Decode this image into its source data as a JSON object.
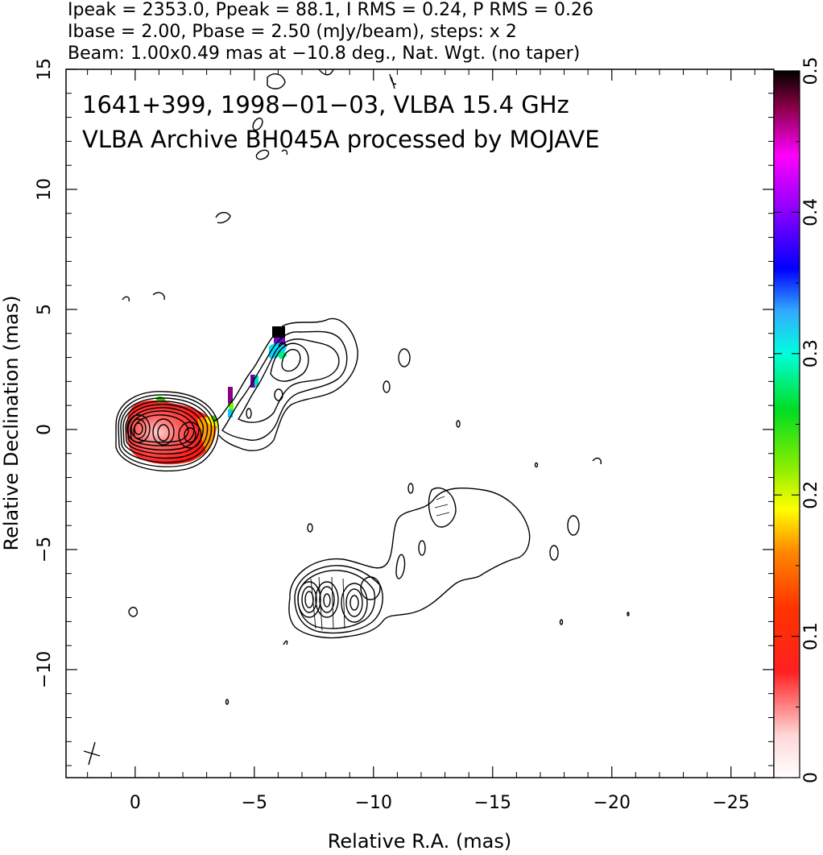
{
  "header": {
    "line1": "Ipeak = 2353.0, Ppeak = 88.1, I RMS = 0.24, P RMS = 0.26",
    "line2": "Ibase = 2.00, Pbase = 2.50 (mJy/beam), steps: x 2",
    "line3": "Beam: 1.00x0.49 mas at −10.8 deg., Nat. Wgt. (no taper)"
  },
  "overlay": {
    "line1": "1641+399, 1998−01−03, VLBA 15.4 GHz",
    "line2": "VLBA Archive BH045A processed by MOJAVE"
  },
  "chart_data": {
    "type": "heatmap",
    "description_kind": "VLBI total-intensity contour map with fractional polarization color overlay",
    "xlabel": "Relative R.A. (mas)",
    "ylabel": "Relative Declination (mas)",
    "xlim": [
      2.9,
      -26.8
    ],
    "ylim": [
      -14.5,
      15
    ],
    "x_ticks": [
      0,
      -5,
      -10,
      -15,
      -20,
      -25
    ],
    "x_tick_labels": [
      "0",
      "−5",
      "−10",
      "−15",
      "−20",
      "−25"
    ],
    "y_ticks": [
      -10,
      -5,
      0,
      5,
      10,
      15
    ],
    "y_tick_labels": [
      "−10",
      "−5",
      "0",
      "5",
      "10",
      "15"
    ],
    "colorbar": {
      "min": 0,
      "max": 0.5,
      "ticks": [
        0,
        0.1,
        0.2,
        0.3,
        0.4,
        0.5
      ],
      "tick_labels": [
        "0",
        "0.1",
        "0.2",
        "0.3",
        "0.4",
        "0.5"
      ],
      "stops": [
        "#ffffff",
        "#ff0000",
        "#ff8800",
        "#ffff00",
        "#33dd00",
        "#00ffdd",
        "#0000ff",
        "#ff00ff",
        "#000000"
      ]
    },
    "image_stats": {
      "ipeak": 2353.0,
      "ppeak": 88.1,
      "i_rms": 0.24,
      "p_rms": 0.26,
      "ibase": 2.0,
      "pbase": 2.5,
      "contour_step_factor": 2,
      "beam_major_mas": 1.0,
      "beam_minor_mas": 0.49,
      "beam_pa_deg": -10.8
    },
    "source": "1641+399",
    "epoch": "1998-01-03",
    "frequency_ghz": 15.4
  }
}
